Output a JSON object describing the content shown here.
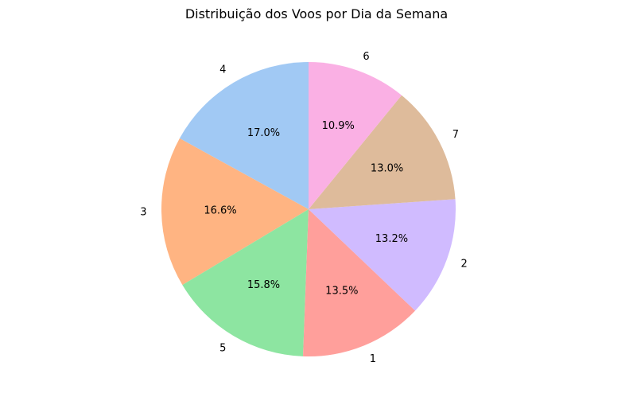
{
  "chart_data": {
    "type": "pie",
    "title": "Distribuição dos Voos por Dia da Semana",
    "categories": [
      "4",
      "3",
      "5",
      "1",
      "2",
      "7",
      "6"
    ],
    "values": [
      17.0,
      16.6,
      15.8,
      13.5,
      13.2,
      13.0,
      10.9
    ],
    "value_labels": [
      "17.0%",
      "16.6%",
      "15.8%",
      "13.5%",
      "13.2%",
      "13.0%",
      "10.9%"
    ],
    "colors": [
      "#a1c9f4",
      "#ffb482",
      "#8de5a1",
      "#ff9f9b",
      "#d0bbff",
      "#debb9b",
      "#fab0e4"
    ],
    "start_angle_deg": 90,
    "direction": "counterclockwise",
    "legend": "none"
  }
}
